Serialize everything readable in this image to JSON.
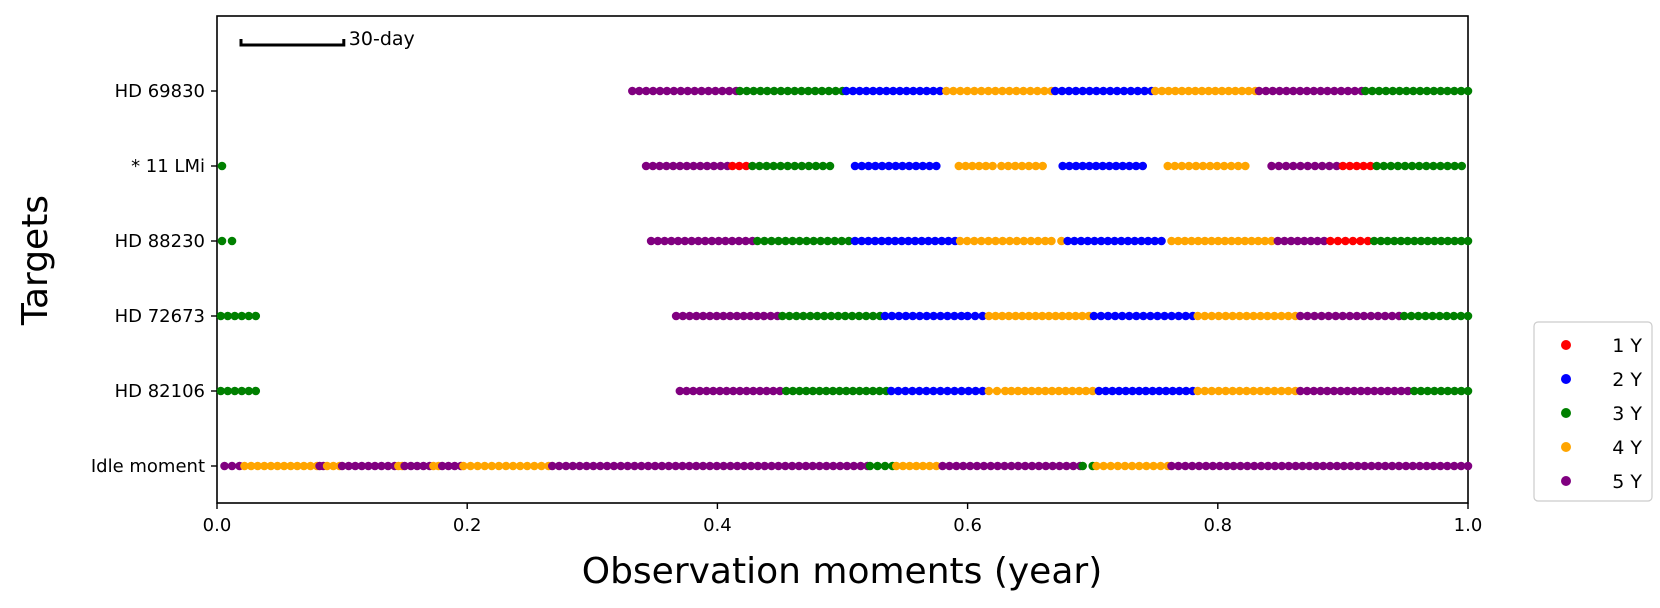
{
  "chart_data": {
    "type": "scatter",
    "xlabel": "Observation moments (year)",
    "ylabel": "Targets",
    "xlim": [
      0.0,
      1.0
    ],
    "x_ticks": [
      "0.0",
      "0.2",
      "0.4",
      "0.6",
      "0.8",
      "1.0"
    ],
    "categories": [
      "HD 69830",
      "* 11 LMi",
      "HD 88230",
      "HD 72673",
      "HD 82106",
      "Idle moment"
    ],
    "scale_bar": {
      "label": "30-day",
      "span_days": 30
    },
    "legend": [
      {
        "label": "1 Y",
        "color": "#ff0000"
      },
      {
        "label": "2 Y",
        "color": "#0000ff"
      },
      {
        "label": "3 Y",
        "color": "#008000"
      },
      {
        "label": "4 Y",
        "color": "#ffa500"
      },
      {
        "label": "5 Y",
        "color": "#800080"
      }
    ],
    "dot_spacing_year": 0.0055,
    "rows": [
      {
        "target": "HD 69830",
        "segments": [
          {
            "series": "5 Y",
            "start": 0.332,
            "end": 0.415
          },
          {
            "series": "3 Y",
            "start": 0.418,
            "end": 0.5
          },
          {
            "series": "2 Y",
            "start": 0.503,
            "end": 0.578
          },
          {
            "series": "4 Y",
            "start": 0.583,
            "end": 0.667
          },
          {
            "series": "2 Y",
            "start": 0.67,
            "end": 0.747
          },
          {
            "series": "4 Y",
            "start": 0.75,
            "end": 0.83
          },
          {
            "series": "5 Y",
            "start": 0.833,
            "end": 0.915
          },
          {
            "series": "3 Y",
            "start": 0.918,
            "end": 1.0
          }
        ]
      },
      {
        "target": "* 11 LMi",
        "segments": [
          {
            "series": "3 Y",
            "start": 0.004,
            "end": 0.004
          },
          {
            "series": "5 Y",
            "start": 0.343,
            "end": 0.408
          },
          {
            "series": "1 Y",
            "start": 0.412,
            "end": 0.423
          },
          {
            "series": "3 Y",
            "start": 0.428,
            "end": 0.49
          },
          {
            "series": "2 Y",
            "start": 0.51,
            "end": 0.575
          },
          {
            "series": "4 Y",
            "start": 0.593,
            "end": 0.62
          },
          {
            "series": "4 Y",
            "start": 0.627,
            "end": 0.66
          },
          {
            "series": "2 Y",
            "start": 0.676,
            "end": 0.74
          },
          {
            "series": "4 Y",
            "start": 0.76,
            "end": 0.822
          },
          {
            "series": "5 Y",
            "start": 0.843,
            "end": 0.895
          },
          {
            "series": "1 Y",
            "start": 0.9,
            "end": 0.922
          },
          {
            "series": "3 Y",
            "start": 0.927,
            "end": 0.995
          }
        ]
      },
      {
        "target": "HD 88230",
        "segments": [
          {
            "series": "3 Y",
            "start": 0.004,
            "end": 0.012
          },
          {
            "series": "5 Y",
            "start": 0.347,
            "end": 0.428
          },
          {
            "series": "3 Y",
            "start": 0.432,
            "end": 0.505
          },
          {
            "series": "2 Y",
            "start": 0.51,
            "end": 0.59
          },
          {
            "series": "4 Y",
            "start": 0.594,
            "end": 0.662
          },
          {
            "series": "4 Y",
            "start": 0.667,
            "end": 0.675
          },
          {
            "series": "2 Y",
            "start": 0.68,
            "end": 0.755
          },
          {
            "series": "4 Y",
            "start": 0.763,
            "end": 0.843
          },
          {
            "series": "5 Y",
            "start": 0.848,
            "end": 0.885
          },
          {
            "series": "1 Y",
            "start": 0.89,
            "end": 0.92
          },
          {
            "series": "3 Y",
            "start": 0.925,
            "end": 1.0
          }
        ]
      },
      {
        "target": "HD 72673",
        "segments": [
          {
            "series": "3 Y",
            "start": 0.003,
            "end": 0.031
          },
          {
            "series": "5 Y",
            "start": 0.367,
            "end": 0.448
          },
          {
            "series": "3 Y",
            "start": 0.452,
            "end": 0.53
          },
          {
            "series": "2 Y",
            "start": 0.534,
            "end": 0.595
          },
          {
            "series": "2 Y",
            "start": 0.6,
            "end": 0.612
          },
          {
            "series": "4 Y",
            "start": 0.617,
            "end": 0.697
          },
          {
            "series": "2 Y",
            "start": 0.701,
            "end": 0.78
          },
          {
            "series": "4 Y",
            "start": 0.784,
            "end": 0.862
          },
          {
            "series": "5 Y",
            "start": 0.866,
            "end": 0.945
          },
          {
            "series": "3 Y",
            "start": 0.949,
            "end": 1.0
          }
        ]
      },
      {
        "target": "HD 82106",
        "segments": [
          {
            "series": "3 Y",
            "start": 0.003,
            "end": 0.031
          },
          {
            "series": "5 Y",
            "start": 0.37,
            "end": 0.45
          },
          {
            "series": "3 Y",
            "start": 0.455,
            "end": 0.535
          },
          {
            "series": "2 Y",
            "start": 0.539,
            "end": 0.612
          },
          {
            "series": "4 Y",
            "start": 0.617,
            "end": 0.63
          },
          {
            "series": "4 Y",
            "start": 0.635,
            "end": 0.7
          },
          {
            "series": "2 Y",
            "start": 0.705,
            "end": 0.78
          },
          {
            "series": "4 Y",
            "start": 0.784,
            "end": 0.862
          },
          {
            "series": "5 Y",
            "start": 0.866,
            "end": 0.952
          },
          {
            "series": "3 Y",
            "start": 0.957,
            "end": 1.0
          }
        ]
      },
      {
        "target": "Idle moment",
        "segments": [
          {
            "series": "5 Y",
            "start": 0.006,
            "end": 0.018
          },
          {
            "series": "4 Y",
            "start": 0.022,
            "end": 0.08
          },
          {
            "series": "5 Y",
            "start": 0.082,
            "end": 0.085
          },
          {
            "series": "4 Y",
            "start": 0.088,
            "end": 0.098
          },
          {
            "series": "5 Y",
            "start": 0.1,
            "end": 0.142
          },
          {
            "series": "4 Y",
            "start": 0.145,
            "end": 0.148
          },
          {
            "series": "5 Y",
            "start": 0.15,
            "end": 0.17
          },
          {
            "series": "4 Y",
            "start": 0.173,
            "end": 0.177
          },
          {
            "series": "5 Y",
            "start": 0.18,
            "end": 0.195
          },
          {
            "series": "4 Y",
            "start": 0.197,
            "end": 0.265
          },
          {
            "series": "5 Y",
            "start": 0.268,
            "end": 0.52
          },
          {
            "series": "3 Y",
            "start": 0.522,
            "end": 0.54
          },
          {
            "series": "4 Y",
            "start": 0.543,
            "end": 0.575
          },
          {
            "series": "5 Y",
            "start": 0.58,
            "end": 0.69
          },
          {
            "series": "3 Y",
            "start": 0.692,
            "end": 0.7
          },
          {
            "series": "4 Y",
            "start": 0.703,
            "end": 0.76
          },
          {
            "series": "5 Y",
            "start": 0.763,
            "end": 1.0
          }
        ]
      }
    ]
  }
}
